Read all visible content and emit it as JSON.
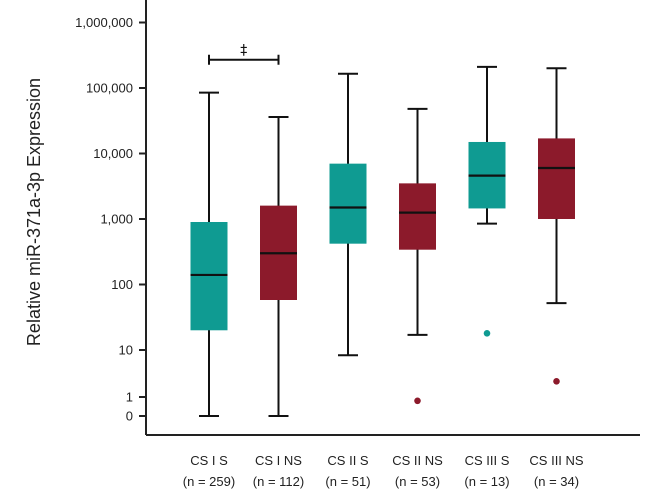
{
  "chart_data": {
    "type": "boxplot",
    "ylabel": "Relative miR-371a-3p Expression",
    "y_scale": "log (with 0 and 1 shown below 10)",
    "y_ticks": [
      {
        "value": 0,
        "label": "0"
      },
      {
        "value": 1,
        "label": "1"
      },
      {
        "value": 10,
        "label": "10"
      },
      {
        "value": 100,
        "label": "100"
      },
      {
        "value": 1000,
        "label": "1,000"
      },
      {
        "value": 10000,
        "label": "10,000"
      },
      {
        "value": 100000,
        "label": "100,000"
      },
      {
        "value": 1000000,
        "label": "1,000,000"
      }
    ],
    "colors": {
      "S": "#0f9b92",
      "NS": "#8c1a2b"
    },
    "categories": [
      {
        "label": "CS I S",
        "n": "(n = 259)",
        "group": "S",
        "min": 0,
        "q1": 20,
        "median": 140,
        "q3": 900,
        "max": 85000,
        "outliers": []
      },
      {
        "label": "CS I NS",
        "n": "(n = 112)",
        "group": "NS",
        "min": 0,
        "q1": 58,
        "median": 300,
        "q3": 1600,
        "max": 36000,
        "outliers": []
      },
      {
        "label": "CS II S",
        "n": "(n = 51)",
        "group": "S",
        "min": 9,
        "q1": 420,
        "median": 1500,
        "q3": 7000,
        "max": 165000,
        "outliers": []
      },
      {
        "label": "CS II NS",
        "n": "(n = 53)",
        "group": "NS",
        "min": 17,
        "q1": 340,
        "median": 1250,
        "q3": 3500,
        "max": 48000,
        "outliers": [
          0.8
        ]
      },
      {
        "label": "CS III S",
        "n": "(n = 13)",
        "group": "S",
        "min": 850,
        "q1": 1450,
        "median": 4600,
        "q3": 15000,
        "max": 210000,
        "outliers": [
          18
        ]
      },
      {
        "label": "CS III NS",
        "n": "(n = 34)",
        "group": "NS",
        "min": 52,
        "q1": 1000,
        "median": 6000,
        "q3": 17000,
        "max": 200000,
        "outliers": [
          4
        ]
      }
    ],
    "annotations": [
      {
        "text": "‡",
        "between": [
          "CS I S",
          "CS I NS"
        ],
        "at_value": 270000
      }
    ]
  }
}
